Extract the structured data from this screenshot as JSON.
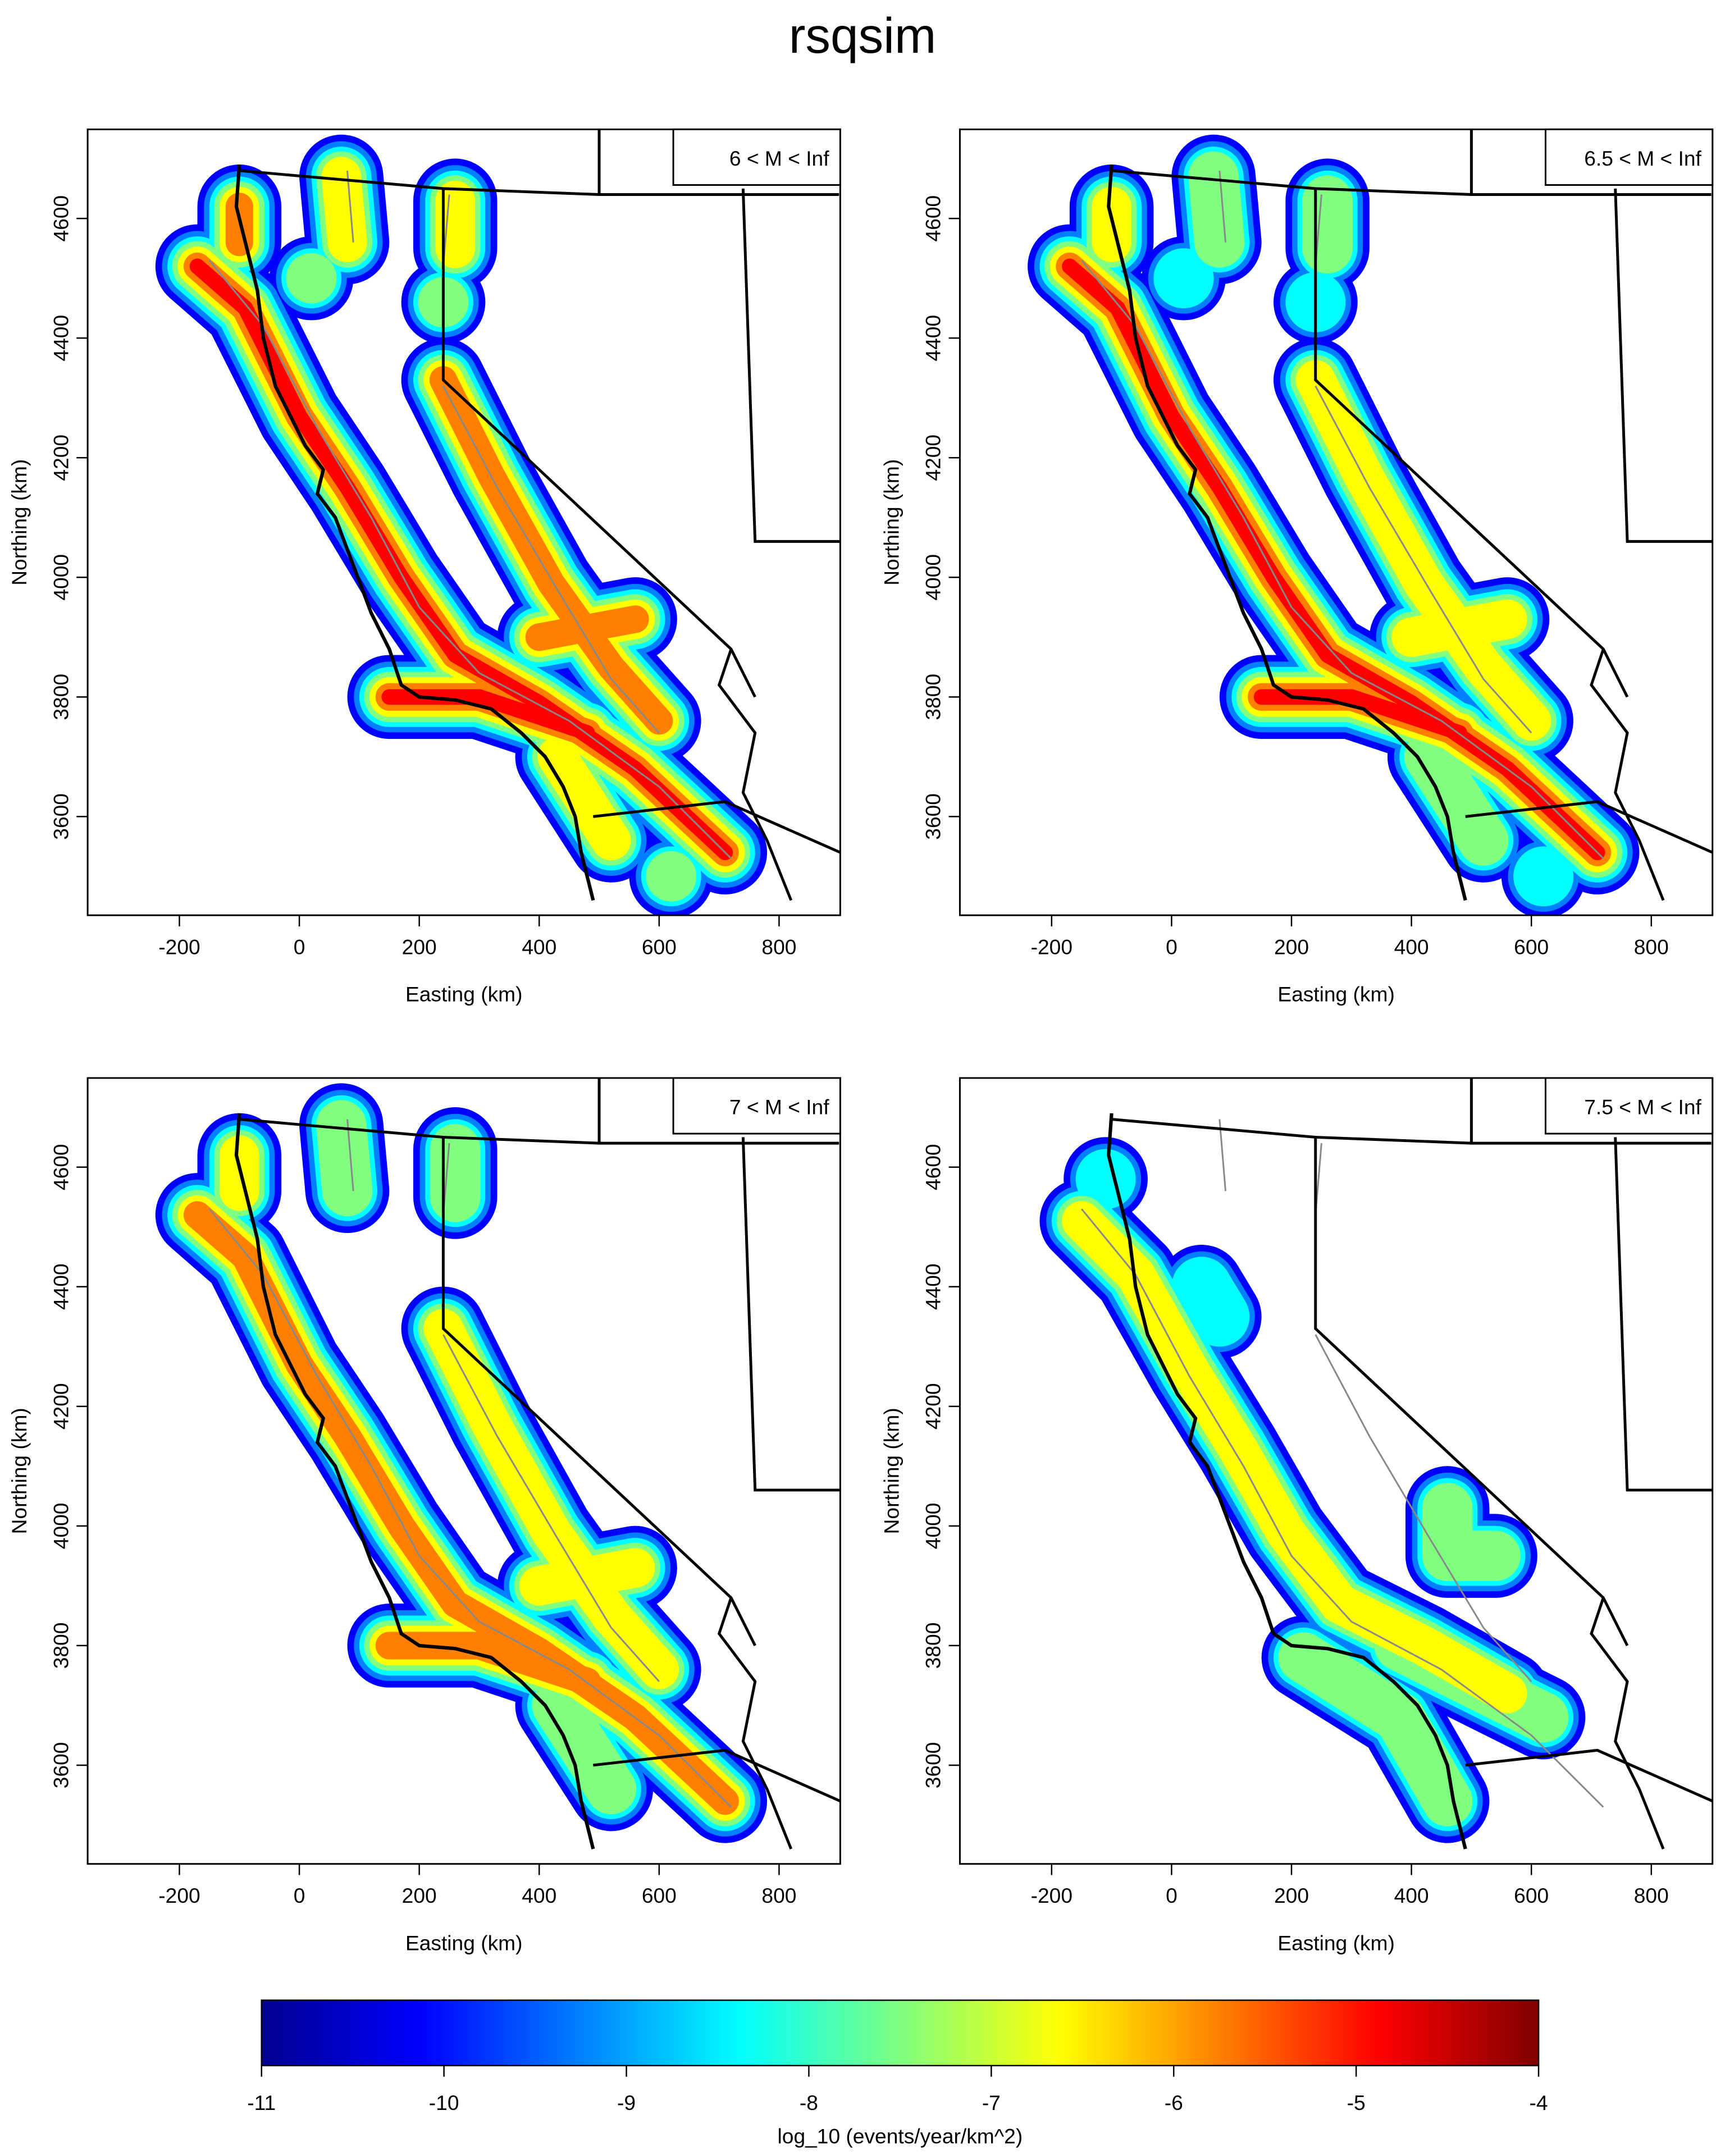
{
  "title": "rsqsim",
  "chart_data": [
    {
      "type": "map",
      "label": "6 < M < Inf",
      "xlabel": "Easting (km)",
      "ylabel": "Northing (km)",
      "xlim": [
        -353,
        902
      ],
      "ylim": [
        3435,
        4749
      ],
      "xticks": [
        -200,
        0,
        200,
        400,
        600,
        800
      ],
      "yticks": [
        3600,
        3800,
        4000,
        4200,
        4400,
        4600
      ]
    },
    {
      "type": "map",
      "label": "6.5 < M < Inf",
      "xlabel": "Easting (km)",
      "ylabel": "Northing (km)",
      "xlim": [
        -353,
        902
      ],
      "ylim": [
        3435,
        4749
      ],
      "xticks": [
        -200,
        0,
        200,
        400,
        600,
        800
      ],
      "yticks": [
        3600,
        3800,
        4000,
        4200,
        4400,
        4600
      ]
    },
    {
      "type": "map",
      "label": "7 < M < Inf",
      "xlabel": "Easting (km)",
      "ylabel": "Northing (km)",
      "xlim": [
        -353,
        902
      ],
      "ylim": [
        3435,
        4749
      ],
      "xticks": [
        -200,
        0,
        200,
        400,
        600,
        800
      ],
      "yticks": [
        3600,
        3800,
        4000,
        4200,
        4400,
        4600
      ]
    },
    {
      "type": "map",
      "label": "7.5 < M < Inf",
      "xlabel": "Easting (km)",
      "ylabel": "Northing (km)",
      "xlim": [
        -353,
        902
      ],
      "ylim": [
        3435,
        4749
      ],
      "xticks": [
        -200,
        0,
        200,
        400,
        600,
        800
      ],
      "yticks": [
        3600,
        3800,
        4000,
        4200,
        4400,
        4600
      ]
    },
    {
      "type": "colorbar",
      "xlabel": "log_10 (events/year/km^2)",
      "xlim": [
        -11,
        -4
      ],
      "xticks": [
        -11,
        -10,
        -9,
        -8,
        -7,
        -6,
        -5,
        -4
      ],
      "colors": [
        "#00008F",
        "#0000FF",
        "#0080FF",
        "#00FFFF",
        "#80FF80",
        "#FFFF00",
        "#FF8000",
        "#FF0000",
        "#800000"
      ]
    }
  ]
}
